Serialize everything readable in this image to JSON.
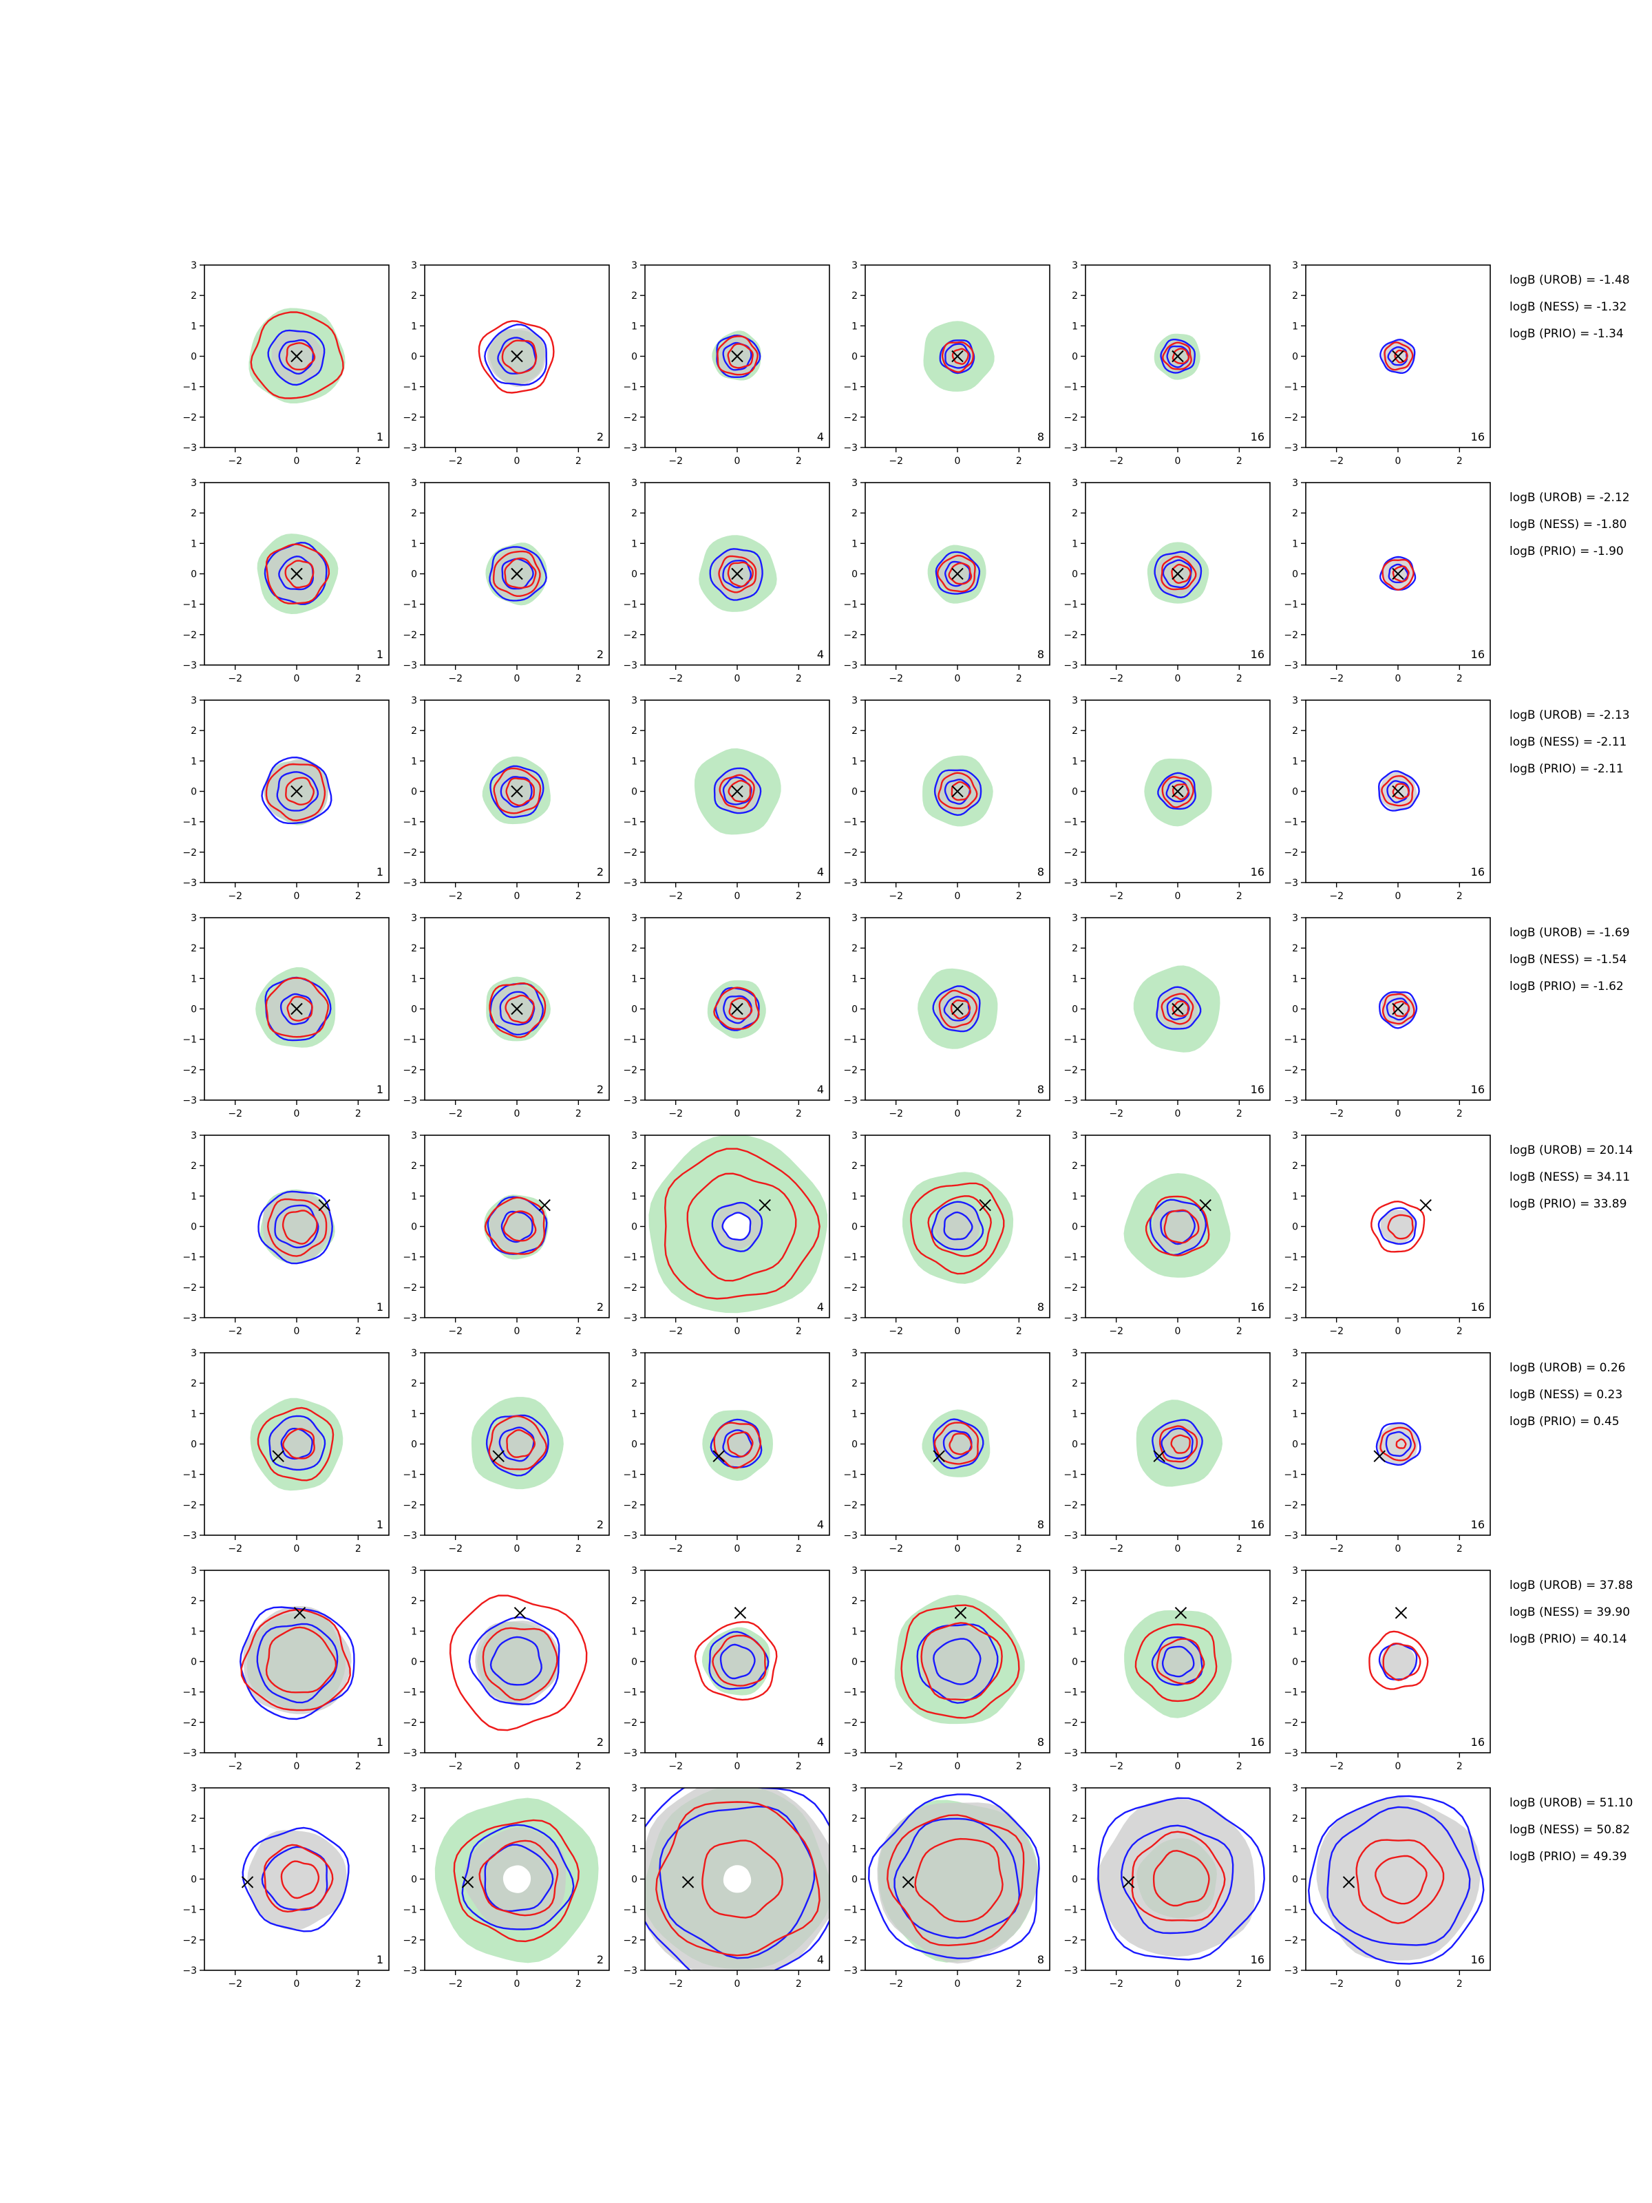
{
  "chart_data": {
    "type": "contour-grid",
    "rows": 8,
    "cols": 6,
    "xlim": [
      -3,
      3
    ],
    "ylim": [
      -3,
      3
    ],
    "xticks": [
      -2,
      0,
      2
    ],
    "yticks": [
      -3,
      -2,
      -1,
      0,
      1,
      2,
      3
    ],
    "colors": {
      "fill": "#bfe9c3",
      "fill_secondary": "#c9c9c9",
      "contour_a": "#1a1aff",
      "contour_b": "#ee1a1a",
      "marker": "#000000"
    },
    "column_labels": [
      "1",
      "2",
      "4",
      "8",
      "16",
      "16"
    ],
    "rows_data": [
      {
        "marker": [
          0.0,
          0.0
        ],
        "stats": [
          "logB (UROB) = -1.48",
          "logB (NESS) = -1.32",
          "logB (PRIO) = -1.34"
        ],
        "green": [
          1.55,
          0.9,
          0.8,
          1.15,
          0.75,
          0.0
        ],
        "blue": [
          [
            0.9,
            0.55
          ],
          [
            1.0,
            0.6
          ],
          [
            0.7,
            0.45
          ],
          [
            0.55,
            0.4
          ],
          [
            0.55,
            0.35
          ],
          [
            0.55,
            0.3
          ]
        ],
        "red": [
          [
            1.45,
            0.45
          ],
          [
            1.2,
            0.55
          ],
          [
            0.65,
            0.4
          ],
          [
            0.5,
            0.25
          ],
          [
            0.45,
            0.25
          ],
          [
            0.45,
            0.2
          ]
        ]
      },
      {
        "marker": [
          0.0,
          0.0
        ],
        "stats": [
          "logB (UROB) = -2.12",
          "logB (NESS) = -1.80",
          "logB (PRIO) = -1.90"
        ],
        "green": [
          1.3,
          1.0,
          1.25,
          0.95,
          1.0,
          0.0
        ],
        "blue": [
          [
            1.0,
            0.55
          ],
          [
            0.9,
            0.5
          ],
          [
            0.85,
            0.45
          ],
          [
            0.7,
            0.4
          ],
          [
            0.75,
            0.45
          ],
          [
            0.55,
            0.3
          ]
        ],
        "red": [
          [
            1.0,
            0.45
          ],
          [
            0.75,
            0.5
          ],
          [
            0.6,
            0.4
          ],
          [
            0.6,
            0.35
          ],
          [
            0.55,
            0.3
          ],
          [
            0.5,
            0.25
          ]
        ]
      },
      {
        "marker": [
          0.0,
          0.0
        ],
        "stats": [
          "logB (UROB) = -2.13",
          "logB (NESS) = -2.11",
          "logB (PRIO) = -2.11"
        ],
        "green": [
          1.05,
          1.1,
          1.4,
          1.15,
          1.1,
          0.0
        ],
        "blue": [
          [
            1.1,
            0.65
          ],
          [
            0.85,
            0.5
          ],
          [
            0.75,
            0.45
          ],
          [
            0.75,
            0.4
          ],
          [
            0.6,
            0.35
          ],
          [
            0.65,
            0.35
          ]
        ],
        "red": [
          [
            0.95,
            0.45
          ],
          [
            0.75,
            0.45
          ],
          [
            0.55,
            0.35
          ],
          [
            0.6,
            0.3
          ],
          [
            0.5,
            0.25
          ],
          [
            0.5,
            0.25
          ]
        ]
      },
      {
        "marker": [
          0.0,
          0.0
        ],
        "stats": [
          "logB (UROB) = -1.69",
          "logB (NESS) = -1.54",
          "logB (PRIO) = -1.62"
        ],
        "green": [
          1.3,
          1.05,
          0.95,
          1.3,
          1.4,
          0.0
        ],
        "blue": [
          [
            1.05,
            0.5
          ],
          [
            0.85,
            0.55
          ],
          [
            0.7,
            0.45
          ],
          [
            0.75,
            0.4
          ],
          [
            0.7,
            0.35
          ],
          [
            0.6,
            0.35
          ]
        ],
        "red": [
          [
            1.0,
            0.4
          ],
          [
            0.9,
            0.45
          ],
          [
            0.7,
            0.35
          ],
          [
            0.6,
            0.3
          ],
          [
            0.5,
            0.25
          ],
          [
            0.5,
            0.25
          ]
        ]
      },
      {
        "marker": [
          0.9,
          0.7
        ],
        "stats": [
          "logB (UROB) = 20.14",
          "logB (NESS) = 34.11",
          "logB (PRIO) = 33.89"
        ],
        "green": [
          1.2,
          1.05,
          2.9,
          1.8,
          1.7,
          0.0
        ],
        "blue": [
          [
            1.2,
            0.7
          ],
          [
            0.95,
            0.5
          ],
          [
            0.8,
            0.45
          ],
          [
            0.8,
            0.45
          ],
          [
            0.9,
            0.55
          ],
          [
            0.6,
            0.0
          ]
        ],
        "red": [
          [
            0.95,
            0.55
          ],
          [
            0.95,
            0.5
          ],
          [
            2.5,
            1.75
          ],
          [
            1.5,
            1.0
          ],
          [
            1.0,
            0.55
          ],
          [
            0.85,
            0.4
          ]
        ]
      },
      {
        "marker": [
          -0.6,
          -0.4
        ],
        "stats": [
          "logB (UROB) = 0.26",
          "logB (NESS) = 0.23",
          "logB (PRIO) = 0.45"
        ],
        "green": [
          1.5,
          1.5,
          1.15,
          1.1,
          1.4,
          0.0
        ],
        "blue": [
          [
            0.9,
            0.5
          ],
          [
            1.0,
            0.55
          ],
          [
            0.8,
            0.45
          ],
          [
            0.8,
            0.45
          ],
          [
            0.8,
            0.5
          ],
          [
            0.7,
            0.4
          ]
        ],
        "red": [
          [
            1.2,
            0.5
          ],
          [
            0.9,
            0.45
          ],
          [
            0.75,
            0.4
          ],
          [
            0.7,
            0.35
          ],
          [
            0.6,
            0.3
          ],
          [
            0.55,
            0.15
          ]
        ]
      },
      {
        "marker": [
          0.1,
          1.6
        ],
        "stats": [
          "logB (UROB) = 37.88",
          "logB (NESS) = 39.90",
          "logB (PRIO) = 40.14"
        ],
        "green": [
          1.6,
          1.3,
          1.1,
          2.1,
          1.75,
          0.0
        ],
        "blue": [
          [
            1.85,
            1.3
          ],
          [
            1.45,
            0.8
          ],
          [
            0.95,
            0.55
          ],
          [
            1.3,
            0.75
          ],
          [
            0.8,
            0.5
          ],
          [
            0.6,
            0.0
          ]
        ],
        "red": [
          [
            1.7,
            1.1
          ],
          [
            2.2,
            1.2
          ],
          [
            1.3,
            0.85
          ],
          [
            1.9,
            1.3
          ],
          [
            1.3,
            0.75
          ],
          [
            0.95,
            0.6
          ]
        ]
      },
      {
        "marker": [
          -1.6,
          -0.1
        ],
        "stats": [
          "logB (UROB) = 51.10",
          "logB (NESS) = 50.82",
          "logB (PRIO) = 49.39"
        ],
        "green": [
          0.0,
          2.65,
          3.0,
          2.6,
          1.3,
          0.0
        ],
        "blue": [
          [
            1.7,
            1.05
          ],
          [
            1.75,
            1.1
          ],
          [
            3.4,
            2.5
          ],
          [
            2.75,
            2.0
          ],
          [
            2.7,
            1.8
          ],
          [
            2.8,
            2.3
          ]
        ],
        "red": [
          [
            1.1,
            0.6
          ],
          [
            2.0,
            1.25
          ],
          [
            2.6,
            1.3
          ],
          [
            2.2,
            1.4
          ],
          [
            1.5,
            0.9
          ],
          [
            1.4,
            0.8
          ]
        ]
      }
    ]
  }
}
